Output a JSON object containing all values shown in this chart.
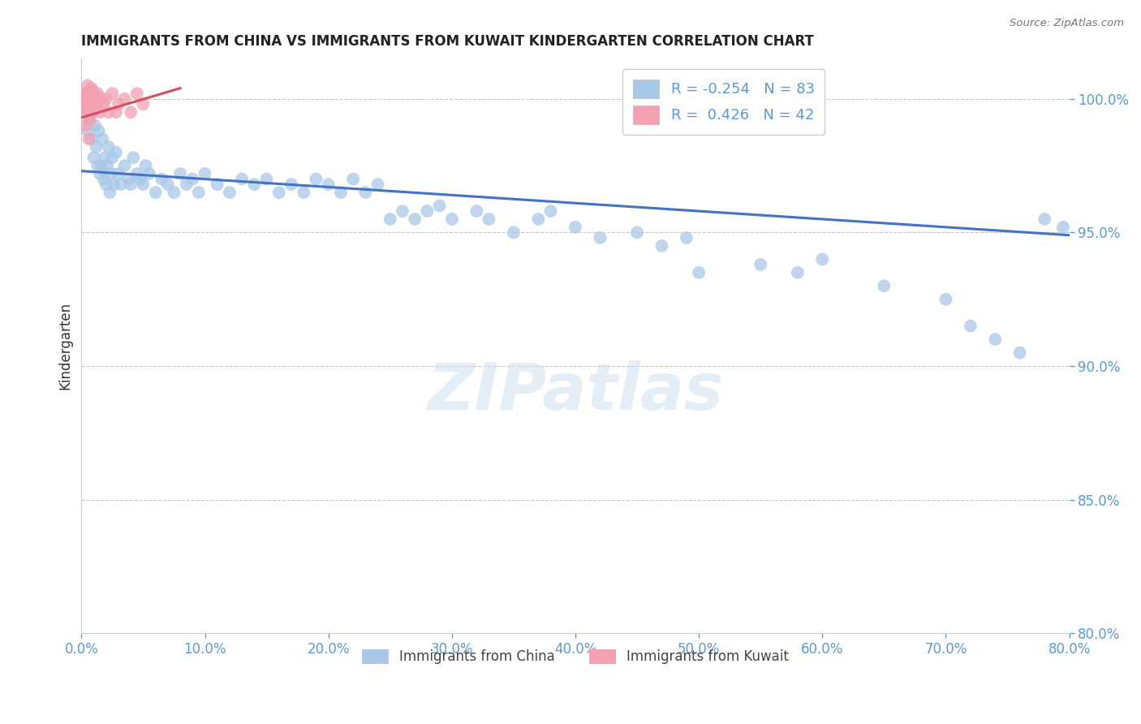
{
  "title": "IMMIGRANTS FROM CHINA VS IMMIGRANTS FROM KUWAIT KINDERGARTEN CORRELATION CHART",
  "source": "Source: ZipAtlas.com",
  "ylabel": "Kindergarten",
  "xlim": [
    0.0,
    80.0
  ],
  "ylim": [
    80.0,
    101.5
  ],
  "yticks": [
    80.0,
    85.0,
    90.0,
    95.0,
    100.0
  ],
  "ytick_labels": [
    "80.0%",
    "85.0%",
    "90.0%",
    "95.0%",
    "100.0%"
  ],
  "xticks": [
    0.0,
    10.0,
    20.0,
    30.0,
    40.0,
    50.0,
    60.0,
    70.0,
    80.0
  ],
  "xtick_labels": [
    "0.0%",
    "10.0%",
    "20.0%",
    "30.0%",
    "40.0%",
    "50.0%",
    "60.0%",
    "70.0%",
    "80.0%"
  ],
  "china_color": "#a8c8e8",
  "kuwait_color": "#f4a0b0",
  "china_line_color": "#4472c4",
  "kuwait_line_color": "#d05060",
  "R_china": -0.254,
  "N_china": 83,
  "R_kuwait": 0.426,
  "N_kuwait": 42,
  "legend_label_china": "Immigrants from China",
  "legend_label_kuwait": "Immigrants from Kuwait",
  "watermark": "ZIPatlas",
  "axis_color": "#5b9bd5",
  "grid_color": "#b0b0b0",
  "blue_trendline_x": [
    0.0,
    80.0
  ],
  "blue_trendline_y": [
    97.3,
    94.9
  ],
  "pink_trendline_x": [
    0.0,
    8.0
  ],
  "pink_trendline_y": [
    99.3,
    100.4
  ],
  "china_scatter_x": [
    0.4,
    0.5,
    0.6,
    0.8,
    1.0,
    1.1,
    1.2,
    1.3,
    1.4,
    1.5,
    1.6,
    1.7,
    1.8,
    1.9,
    2.0,
    2.1,
    2.2,
    2.3,
    2.4,
    2.5,
    2.6,
    2.8,
    3.0,
    3.2,
    3.5,
    3.8,
    4.0,
    4.2,
    4.5,
    4.8,
    5.0,
    5.2,
    5.5,
    6.0,
    6.5,
    7.0,
    7.5,
    8.0,
    8.5,
    9.0,
    9.5,
    10.0,
    11.0,
    12.0,
    13.0,
    14.0,
    15.0,
    16.0,
    17.0,
    18.0,
    19.0,
    20.0,
    21.0,
    22.0,
    23.0,
    24.0,
    25.0,
    26.0,
    27.0,
    28.0,
    29.0,
    30.0,
    32.0,
    33.0,
    35.0,
    37.0,
    38.0,
    40.0,
    42.0,
    45.0,
    47.0,
    49.0,
    50.0,
    55.0,
    58.0,
    60.0,
    65.0,
    70.0,
    72.0,
    74.0,
    76.0,
    78.0,
    79.5
  ],
  "china_scatter_y": [
    99.5,
    98.8,
    99.2,
    98.5,
    97.8,
    99.0,
    98.2,
    97.5,
    98.8,
    97.2,
    97.5,
    98.5,
    97.0,
    97.8,
    96.8,
    97.5,
    98.2,
    96.5,
    97.2,
    97.8,
    96.8,
    98.0,
    97.2,
    96.8,
    97.5,
    97.0,
    96.8,
    97.8,
    97.2,
    97.0,
    96.8,
    97.5,
    97.2,
    96.5,
    97.0,
    96.8,
    96.5,
    97.2,
    96.8,
    97.0,
    96.5,
    97.2,
    96.8,
    96.5,
    97.0,
    96.8,
    97.0,
    96.5,
    96.8,
    96.5,
    97.0,
    96.8,
    96.5,
    97.0,
    96.5,
    96.8,
    95.5,
    95.8,
    95.5,
    95.8,
    96.0,
    95.5,
    95.8,
    95.5,
    95.0,
    95.5,
    95.8,
    95.2,
    94.8,
    95.0,
    94.5,
    94.8,
    93.5,
    93.8,
    93.5,
    94.0,
    93.0,
    92.5,
    91.5,
    91.0,
    90.5,
    95.5,
    95.2
  ],
  "kuwait_scatter_x": [
    0.15,
    0.2,
    0.25,
    0.3,
    0.35,
    0.4,
    0.45,
    0.5,
    0.55,
    0.6,
    0.65,
    0.7,
    0.75,
    0.8,
    0.85,
    0.9,
    0.95,
    1.0,
    1.1,
    1.2,
    1.3,
    1.4,
    1.5,
    1.6,
    1.8,
    2.0,
    2.2,
    2.5,
    3.0,
    3.5,
    4.0,
    4.5,
    5.0,
    0.3,
    0.5,
    0.7,
    0.9,
    1.1,
    1.3,
    0.6,
    0.8,
    2.8
  ],
  "kuwait_scatter_y": [
    100.0,
    99.8,
    100.2,
    99.5,
    100.0,
    100.2,
    99.8,
    100.0,
    99.5,
    100.2,
    99.8,
    100.0,
    99.5,
    100.2,
    99.8,
    100.0,
    99.5,
    100.2,
    100.0,
    99.8,
    100.2,
    100.0,
    99.5,
    100.0,
    99.8,
    100.0,
    99.5,
    100.2,
    99.8,
    100.0,
    99.5,
    100.2,
    99.8,
    99.0,
    100.5,
    99.2,
    100.3,
    99.7,
    100.1,
    98.5,
    100.4,
    99.5
  ],
  "legend_fontsize": 13,
  "title_fontsize": 12,
  "axis_label_fontsize": 12
}
